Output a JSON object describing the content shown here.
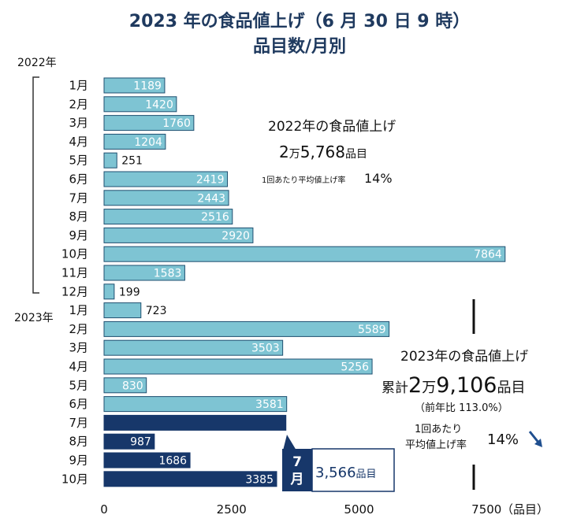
{
  "chart_data": {
    "type": "bar",
    "orientation": "horizontal",
    "title_line1": "2023 年の食品値上げ（6 月 30 日 9 時）",
    "title_line2": "品目数/月別",
    "year_2022_label": "2022年",
    "year_2023_label": "2023年",
    "categories": [
      "1月",
      "2月",
      "3月",
      "4月",
      "5月",
      "6月",
      "7月",
      "8月",
      "9月",
      "10月",
      "11月",
      "12月",
      "1月",
      "2月",
      "3月",
      "4月",
      "5月",
      "6月",
      "7月",
      "8月",
      "9月",
      "10月"
    ],
    "values": [
      1189,
      1420,
      1760,
      1204,
      251,
      2419,
      2443,
      2516,
      2920,
      7864,
      1583,
      199,
      723,
      5589,
      3503,
      5256,
      830,
      3581,
      3566,
      987,
      1686,
      3385
    ],
    "value_labels": [
      "1189",
      "1420",
      "1760",
      "1204",
      "251",
      "2419",
      "2443",
      "2516",
      "2920",
      "7864",
      "1583",
      "199",
      "723",
      "5589",
      "3503",
      "5256",
      "830",
      "3581",
      "",
      "987",
      "1686",
      "3385"
    ],
    "bar_styles": [
      "light",
      "light",
      "light",
      "light",
      "light",
      "light",
      "light",
      "light",
      "light",
      "light",
      "light",
      "light",
      "light",
      "light",
      "light",
      "light",
      "light",
      "light",
      "dark",
      "dark",
      "dark",
      "dark"
    ],
    "x_ticks": [
      "0",
      "2500",
      "5000",
      "7500"
    ],
    "x_tick_values": [
      0,
      2500,
      5000,
      7500
    ],
    "x_unit": "（品目）",
    "xlim": [
      0,
      8000
    ],
    "colors": {
      "light": "#7ec4d3",
      "dark": "#17376a",
      "edge": "#1f4f70"
    },
    "annotation_2022": {
      "line1": "2022年の食品値上げ",
      "total_big1": "2",
      "total_small1": "万",
      "total_big2": "5,768",
      "total_small2": "品目",
      "avg_label": "1回あたり平均値上げ率",
      "avg_value": "14%"
    },
    "annotation_2023": {
      "line1": "2023年の食品値上げ",
      "prefix": "累計",
      "total_big1": "2",
      "total_small1": "万",
      "total_big2": "9,106",
      "total_small2": "品目",
      "yoy": "（前年比 113.0%）",
      "avg_label1": "1回あたり",
      "avg_label2": "平均値上げ率",
      "avg_value": "14%"
    },
    "callout": {
      "month_top": "7",
      "month_bottom": "月",
      "value": "3,566",
      "unit": "品目"
    }
  }
}
